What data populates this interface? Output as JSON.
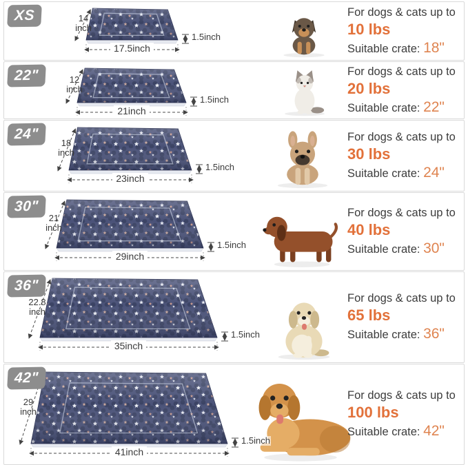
{
  "colors": {
    "accent_orange": "#e2713a",
    "crate_orange": "#df8450",
    "badge_gray": "#8d8d8d",
    "mat_navy": "#4a5278",
    "text_dark": "#3c3c3c",
    "row_border": "#d9d9d9"
  },
  "rows": [
    {
      "badge": "XS",
      "height_value": "14",
      "height_unit": "inch",
      "width_label": "17.5inch",
      "thickness_label": "1.5inch",
      "animal": "yorkshire-terrier-puppy",
      "pet_type": "puppy",
      "pet_colors": {
        "body": "#6a5847",
        "accent": "#c89058",
        "dark": "#3e342a"
      },
      "line1": "For dogs & cats up to",
      "weight": "10 lbs",
      "crate_prefix": "Suitable crate: ",
      "crate": "18\""
    },
    {
      "badge": "22\"",
      "height_value": "12",
      "height_unit": "inch",
      "width_label": "21inch",
      "thickness_label": "1.5inch",
      "animal": "ragdoll-cat",
      "pet_type": "cat",
      "pet_colors": {
        "body": "#f0ede7",
        "accent": "#9a9088",
        "dark": "#6e655c"
      },
      "line1": "For dogs & cats up to",
      "weight": "20 lbs",
      "crate_prefix": "Suitable crate: ",
      "crate": "22\""
    },
    {
      "badge": "24\"",
      "height_value": "18",
      "height_unit": "inch",
      "width_label": "23inch",
      "thickness_label": "1.5inch",
      "animal": "french-bulldog",
      "pet_type": "frenchie",
      "pet_colors": {
        "body": "#c9a47c",
        "accent": "#e2c9a8",
        "dark": "#45392f"
      },
      "line1": "For dogs & cats up to",
      "weight": "30 lbs",
      "crate_prefix": "Suitable crate: ",
      "crate": "24\""
    },
    {
      "badge": "30\"",
      "height_value": "21",
      "height_unit": "inch",
      "width_label": "29inch",
      "thickness_label": "1.5inch",
      "animal": "dachshund",
      "pet_type": "dachshund",
      "pet_colors": {
        "body": "#94502b",
        "accent": "#7a3f20",
        "dark": "#5e2f16"
      },
      "line1": "For dogs & cats up to",
      "weight": "40 lbs",
      "crate_prefix": "Suitable crate: ",
      "crate": "30\""
    },
    {
      "badge": "36\"",
      "height_value": "22.8",
      "height_unit": "inch",
      "width_label": "35inch",
      "thickness_label": "1.5inch",
      "animal": "cream-golden-retriever",
      "pet_type": "golden_sit",
      "pet_colors": {
        "body": "#e9dab6",
        "accent": "#f5eedd",
        "dark": "#cdb98d"
      },
      "line1": "For dogs & cats up to",
      "weight": "65 lbs",
      "crate_prefix": "Suitable crate: ",
      "crate": "36\""
    },
    {
      "badge": "42\"",
      "height_value": "29",
      "height_unit": "inch",
      "width_label": "41inch",
      "thickness_label": "1.5inch",
      "animal": "golden-retriever",
      "pet_type": "golden_lying",
      "pet_colors": {
        "body": "#d3924a",
        "accent": "#e5ad66",
        "dark": "#b5762f"
      },
      "line1": "For dogs & cats up to",
      "weight": "100 lbs",
      "crate_prefix": "Suitable crate: ",
      "crate": "42\""
    }
  ]
}
